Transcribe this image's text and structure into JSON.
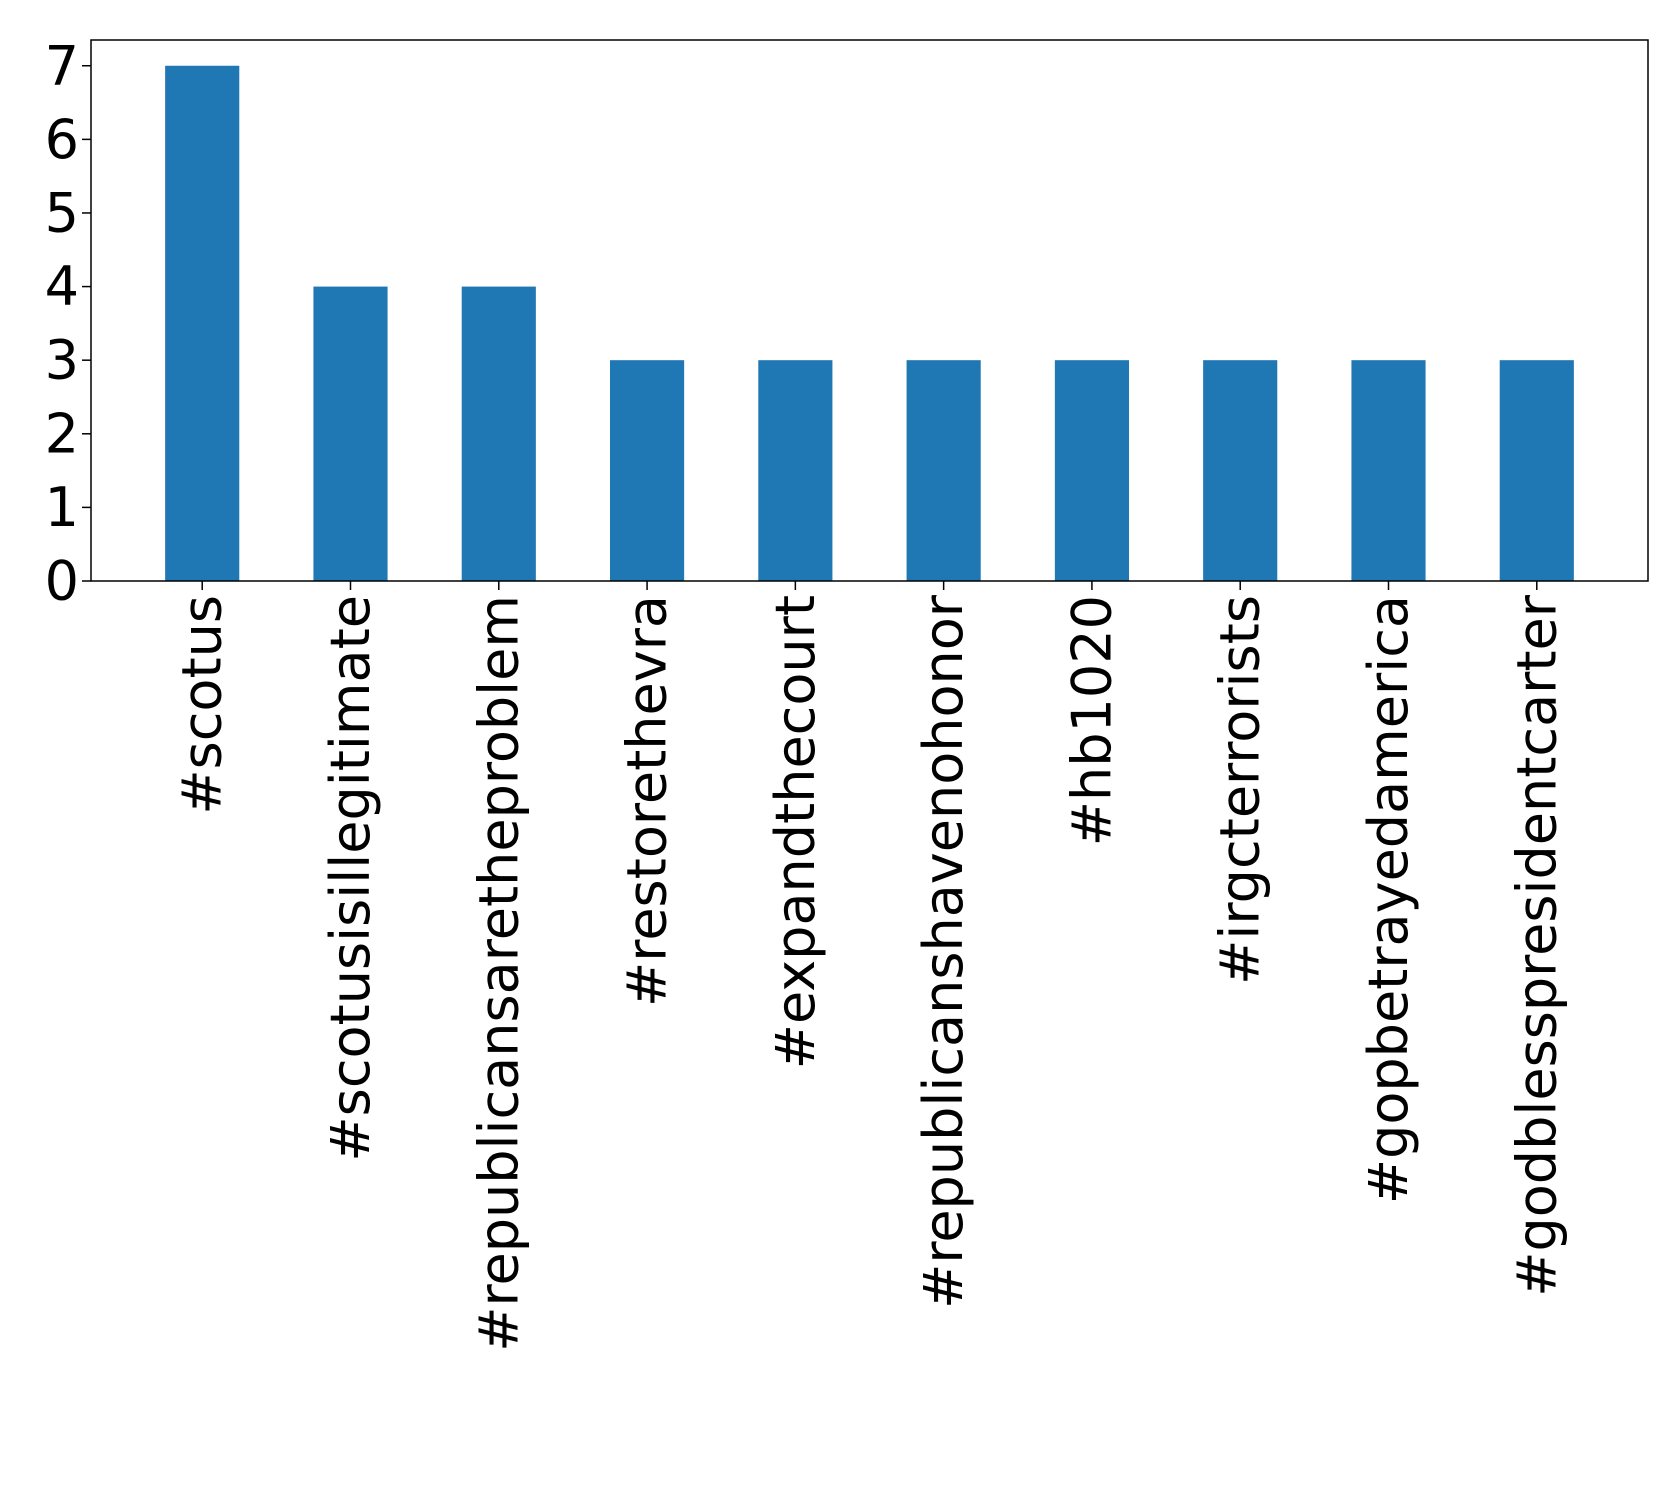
{
  "chart_data": {
    "type": "bar",
    "title": "",
    "xlabel": "",
    "ylabel": "",
    "categories": [
      "#scotus",
      "#scotusisillegitimate",
      "#republicansaretheproblem",
      "#restorethevra",
      "#expandthecourt",
      "#republicanshavenohonor",
      "#hb1020",
      "#irgcterrorists",
      "#gopbetrayedamerica",
      "#godblesspresidentcarter"
    ],
    "values": [
      7,
      4,
      4,
      3,
      3,
      3,
      3,
      3,
      3,
      3
    ],
    "ylim": [
      0,
      7.35
    ],
    "yticks": [
      0,
      1,
      2,
      3,
      4,
      5,
      6,
      7
    ],
    "grid": false,
    "legend": "none",
    "bar_color": "#1f77b4"
  }
}
